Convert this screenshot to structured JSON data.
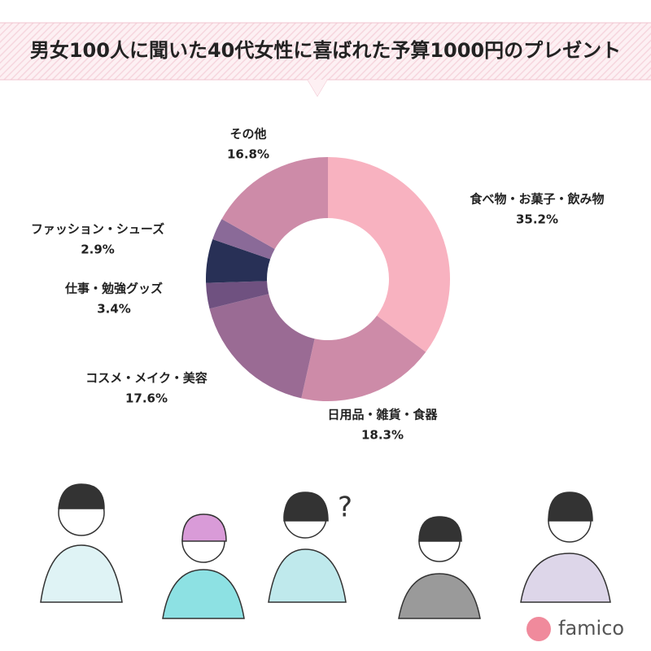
{
  "chart_data": {
    "type": "donut",
    "title": "男女100人に聞いた40代女性に喜ばれた予算1000円のプレゼント",
    "categories": [
      "食べ物・お菓子・飲み物",
      "日用品・雑貨・食器",
      "コスメ・メイク・美容",
      "仕事・勉強グッズ",
      null,
      "ファッション・シューズ",
      "その他"
    ],
    "values": [
      35.2,
      18.3,
      17.6,
      3.4,
      5.8,
      2.9,
      16.8
    ],
    "value_labels": [
      "35.2%",
      "18.3%",
      "17.6%",
      "3.4%",
      null,
      "2.9%",
      "16.8%"
    ],
    "colors": [
      "#f8b2c0",
      "#cd8ba8",
      "#9a6b94",
      "#6f5180",
      "#283056",
      "#8a6a98",
      "#cd8ba8"
    ]
  },
  "logo": "famico"
}
